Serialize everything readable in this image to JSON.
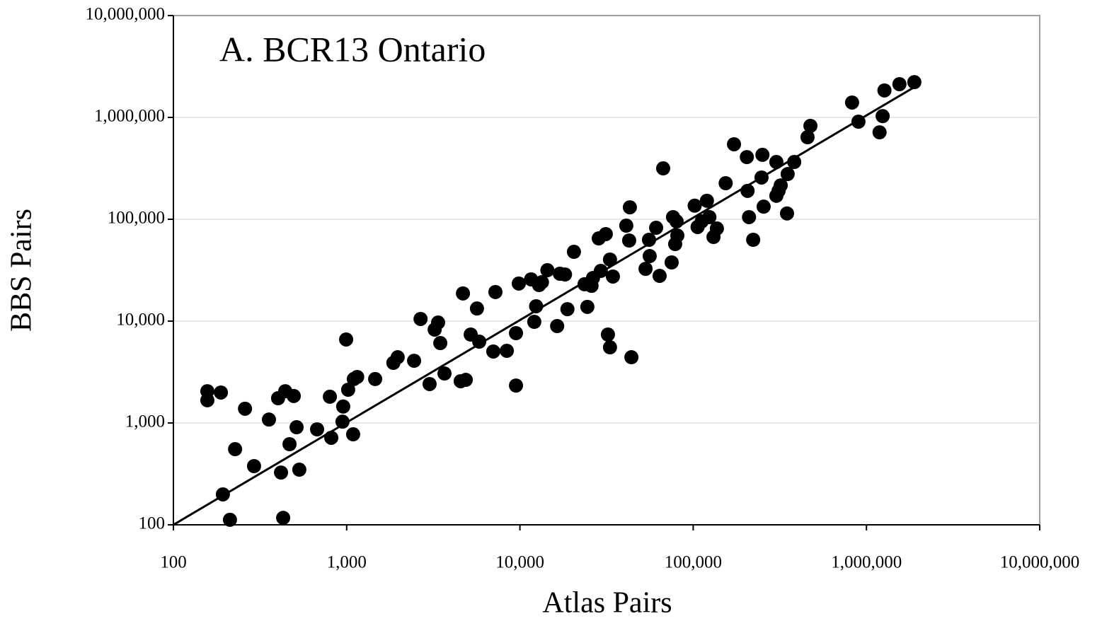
{
  "chart_data": {
    "type": "scatter",
    "title": "A.  BCR13 Ontario",
    "x_label": "Atlas Pairs",
    "y_label": "BBS Pairs",
    "log_x": true,
    "log_y": true,
    "grid": true,
    "xlim": [
      100,
      10000000
    ],
    "ylim": [
      100,
      10000000
    ],
    "xticks": [
      100,
      {
        "value": 1000,
        "label": "1,000"
      },
      {
        "value": 10000,
        "label": "10,000"
      },
      {
        "value": 100000,
        "label": "100,000"
      },
      {
        "value": 1000000,
        "label": "1,000,000"
      },
      {
        "value": 10000000,
        "label": "10,000,000"
      }
    ],
    "yticks": [
      100,
      {
        "value": 1000,
        "label": "1,000"
      },
      {
        "value": 10000,
        "label": "10,000"
      },
      {
        "value": 100000,
        "label": "100,000"
      },
      {
        "value": 1000000,
        "label": "1,000,000"
      },
      {
        "value": 10000000,
        "label": "10,000,000"
      }
    ],
    "points": {
      "color": "#000000",
      "x": [
        157,
        157,
        188,
        193,
        212,
        227,
        259,
        292,
        356,
        402,
        442,
        495,
        418,
        430,
        468,
        514,
        533,
        675,
        800,
        815,
        955,
        946,
        993,
        1020,
        1090,
        1100,
        1150,
        1460,
        1860,
        1970,
        2450,
        2670,
        3010,
        3220,
        3370,
        3470,
        3670,
        4550,
        4870,
        4690,
        5200,
        5650,
        5820,
        7020,
        7220,
        8400,
        9490,
        9490,
        9850,
        11600,
        12100,
        12400,
        12900,
        13400,
        14400,
        16400,
        17000,
        18200,
        18800,
        20500,
        23600,
        24500,
        25900,
        26400,
        28500,
        29300,
        31300,
        32200,
        33100,
        33100,
        34400,
        41100,
        42700,
        43100,
        44000,
        53100,
        55600,
        56100,
        61100,
        64000,
        67100,
        75100,
        76500,
        78700,
        80200,
        81000,
        102000,
        106000,
        112000,
        120000,
        124000,
        131000,
        137000,
        154000,
        172000,
        204000,
        206000,
        210000,
        222000,
        251000,
        248000,
        255000,
        302000,
        302000,
        311000,
        320000,
        348000,
        351000,
        383000,
        457000,
        475000,
        826000,
        899000,
        1190000,
        1240000,
        1270000,
        1550000,
        1890000
      ],
      "y": [
        2050,
        1670,
        1990,
        199,
        112,
        553,
        1380,
        377,
        1080,
        1750,
        2050,
        1840,
        326,
        117,
        619,
        908,
        348,
        866,
        1810,
        715,
        1450,
        1030,
        6600,
        2120,
        774,
        2700,
        2830,
        2700,
        3890,
        4420,
        4080,
        10500,
        2410,
        8260,
        9680,
        6090,
        3060,
        2570,
        2650,
        18700,
        7380,
        13300,
        6290,
        5030,
        19300,
        5110,
        2330,
        7620,
        23400,
        25700,
        9840,
        14000,
        22600,
        24100,
        31600,
        8940,
        29200,
        28700,
        13100,
        47900,
        23000,
        13800,
        22200,
        26500,
        64900,
        31100,
        71500,
        7380,
        5530,
        40200,
        27400,
        86600,
        61900,
        131000,
        4420,
        32600,
        62900,
        43500,
        82500,
        27800,
        316000,
        37700,
        105000,
        57100,
        95300,
        69200,
        136000,
        83900,
        95300,
        152000,
        105000,
        67000,
        81200,
        226000,
        545000,
        408000,
        190000,
        105000,
        62900,
        429000,
        257000,
        133000,
        365000,
        170000,
        190000,
        215000,
        114000,
        278000,
        365000,
        639000,
        826000,
        1400000,
        908000,
        714000,
        1030000,
        1840000,
        2120000,
        2220000
      ]
    },
    "fit_line": {
      "color": "#000000",
      "x": [
        100,
        2000000
      ],
      "y": [
        100,
        2100000
      ]
    }
  }
}
